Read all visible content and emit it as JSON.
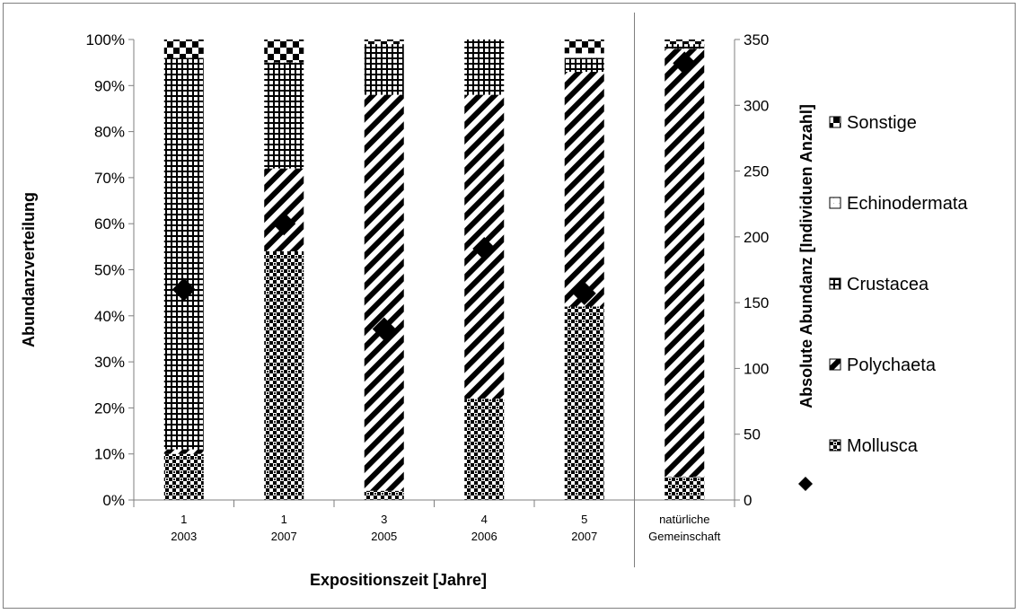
{
  "chart_data": {
    "type": "bar",
    "stacked": "percent",
    "categories": [
      {
        "line1": "1",
        "line2": "2003"
      },
      {
        "line1": "1",
        "line2": "2007"
      },
      {
        "line1": "3",
        "line2": "2005"
      },
      {
        "line1": "4",
        "line2": "2006"
      },
      {
        "line1": "5",
        "line2": "2007"
      },
      {
        "line1": "natürliche",
        "line2": "Gemeinschaft"
      }
    ],
    "series": [
      {
        "name": "Mollusca",
        "pattern": "checker-fine",
        "values": [
          10,
          54,
          2,
          22,
          42,
          5
        ]
      },
      {
        "name": "Polychaeta",
        "pattern": "diagonal",
        "values": [
          1,
          18,
          86,
          66,
          51,
          93
        ]
      },
      {
        "name": "Crustacea",
        "pattern": "grid",
        "values": [
          85,
          23,
          11,
          12,
          3,
          1
        ]
      },
      {
        "name": "Echinodermata",
        "pattern": "white",
        "values": [
          0,
          0,
          0,
          0,
          1,
          0
        ]
      },
      {
        "name": "Sonstige",
        "pattern": "checker-coarse",
        "values": [
          4,
          5,
          1,
          0,
          3,
          1
        ]
      }
    ],
    "secondary_series": {
      "name": "Absolute Abundanz",
      "marker": "diamond",
      "values": [
        160,
        210,
        130,
        191,
        157,
        332
      ]
    },
    "xlabel": "Expositionszeit [Jahre]",
    "ylabel": "Abundanzverteilung",
    "y2label": "Absolute Abundanz [Individuen Anzahl]",
    "ylim": [
      0,
      100
    ],
    "y2lim": [
      0,
      350
    ],
    "yticks": [
      "0%",
      "10%",
      "20%",
      "30%",
      "40%",
      "50%",
      "60%",
      "70%",
      "80%",
      "90%",
      "100%"
    ],
    "y2ticks": [
      "0",
      "50",
      "100",
      "150",
      "200",
      "250",
      "300",
      "350"
    ],
    "legend_position": "right",
    "grid": false,
    "separator_after_category": 5
  }
}
